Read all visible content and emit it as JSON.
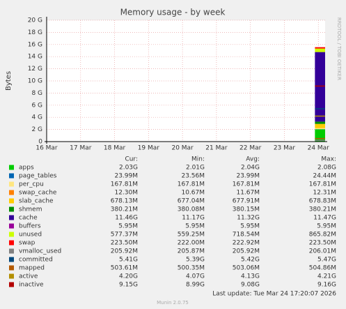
{
  "chart_data": {
    "type": "area",
    "title": "Memory usage - by week",
    "y_label": "Bytes",
    "side_label": "RRDTOOL / TOBI OETIKER",
    "x": [
      23.9,
      24.2
    ],
    "xlim": [
      16,
      24.2
    ],
    "xticks": [
      {
        "value": 16,
        "label": "16 Mar"
      },
      {
        "value": 17,
        "label": "17 Mar"
      },
      {
        "value": 18,
        "label": "18 Mar"
      },
      {
        "value": 19,
        "label": "19 Mar"
      },
      {
        "value": 20,
        "label": "20 Mar"
      },
      {
        "value": 21,
        "label": "21 Mar"
      },
      {
        "value": 22,
        "label": "22 Mar"
      },
      {
        "value": 23,
        "label": "23 Mar"
      },
      {
        "value": 24,
        "label": "24 Mar"
      }
    ],
    "ylim": [
      0,
      20
    ],
    "yticks": [
      0,
      {
        "value": 2,
        "label": "2 G"
      },
      {
        "value": 4,
        "label": "4 G"
      },
      {
        "value": 6,
        "label": "6 G"
      },
      {
        "value": 8,
        "label": "8 G"
      },
      {
        "value": 10,
        "label": "10 G"
      },
      {
        "value": 12,
        "label": "12 G"
      },
      {
        "value": 14,
        "label": "14 G"
      },
      {
        "value": 16,
        "label": "16 G"
      },
      {
        "value": 18,
        "label": "18 G"
      },
      {
        "value": 20,
        "label": "20 G"
      }
    ],
    "grid": true,
    "columns": [
      "Cur:",
      "Min:",
      "Avg:",
      "Max:"
    ],
    "series": [
      {
        "name": "apps",
        "color": "#00cc00",
        "kind": "stack",
        "values": [
          2.03,
          2.03
        ],
        "stats": [
          "2.03G",
          "2.01G",
          "2.04G",
          "2.08G"
        ]
      },
      {
        "name": "page_tables",
        "color": "#0066b3",
        "kind": "stack",
        "values": [
          0.024,
          0.024
        ],
        "stats": [
          "23.99M",
          "23.56M",
          "23.99M",
          "24.44M"
        ]
      },
      {
        "name": "per_cpu",
        "color": "#ffe680",
        "kind": "stack",
        "values": [
          0.168,
          0.168
        ],
        "stats": [
          "167.81M",
          "167.81M",
          "167.81M",
          "167.81M"
        ]
      },
      {
        "name": "swap_cache",
        "color": "#ff8000",
        "kind": "stack",
        "values": [
          0.012,
          0.012
        ],
        "stats": [
          "12.30M",
          "10.67M",
          "11.67M",
          "12.31M"
        ]
      },
      {
        "name": "slab_cache",
        "color": "#ffcc00",
        "kind": "stack",
        "values": [
          0.678,
          0.678
        ],
        "stats": [
          "678.13M",
          "677.04M",
          "677.91M",
          "678.83M"
        ]
      },
      {
        "name": "shmem",
        "color": "#008f00",
        "kind": "stack",
        "values": [
          0.38,
          0.38
        ],
        "stats": [
          "380.21M",
          "380.08M",
          "380.15M",
          "380.21M"
        ]
      },
      {
        "name": "cache",
        "color": "#330099",
        "kind": "stack",
        "values": [
          11.46,
          11.46
        ],
        "stats": [
          "11.46G",
          "11.17G",
          "11.32G",
          "11.47G"
        ]
      },
      {
        "name": "buffers",
        "color": "#990099",
        "kind": "stack",
        "values": [
          0.006,
          0.006
        ],
        "stats": [
          "5.95M",
          "5.95M",
          "5.95M",
          "5.95M"
        ]
      },
      {
        "name": "unused",
        "color": "#ccff00",
        "kind": "stack",
        "values": [
          0.577,
          0.577
        ],
        "stats": [
          "577.37M",
          "559.25M",
          "718.54M",
          "865.82M"
        ]
      },
      {
        "name": "swap",
        "color": "#ff0000",
        "kind": "stack",
        "values": [
          0.224,
          0.224
        ],
        "stats": [
          "223.50M",
          "222.00M",
          "222.92M",
          "223.50M"
        ]
      },
      {
        "name": "vmalloc_used",
        "color": "#808080",
        "kind": "line",
        "values": [
          0.206,
          0.206
        ],
        "stats": [
          "205.92M",
          "205.87M",
          "205.92M",
          "206.01M"
        ]
      },
      {
        "name": "committed",
        "color": "#00487d",
        "kind": "line",
        "values": [
          5.41,
          5.41
        ],
        "stats": [
          "5.41G",
          "5.39G",
          "5.42G",
          "5.47G"
        ]
      },
      {
        "name": "mapped",
        "color": "#b35a00",
        "kind": "line",
        "values": [
          0.504,
          0.504
        ],
        "stats": [
          "503.61M",
          "500.35M",
          "503.06M",
          "504.86M"
        ]
      },
      {
        "name": "active",
        "color": "#b38f00",
        "kind": "line",
        "values": [
          4.2,
          4.2
        ],
        "stats": [
          "4.20G",
          "4.07G",
          "4.13G",
          "4.21G"
        ]
      },
      {
        "name": "inactive",
        "color": "#b30000",
        "kind": "line",
        "values": [
          9.15,
          9.15
        ],
        "stats": [
          "9.15G",
          "8.99G",
          "9.08G",
          "9.16G"
        ]
      }
    ],
    "last_update": "Last update: Tue Mar 24 17:20:07 2026",
    "footer": "Munin 2.0.75"
  }
}
